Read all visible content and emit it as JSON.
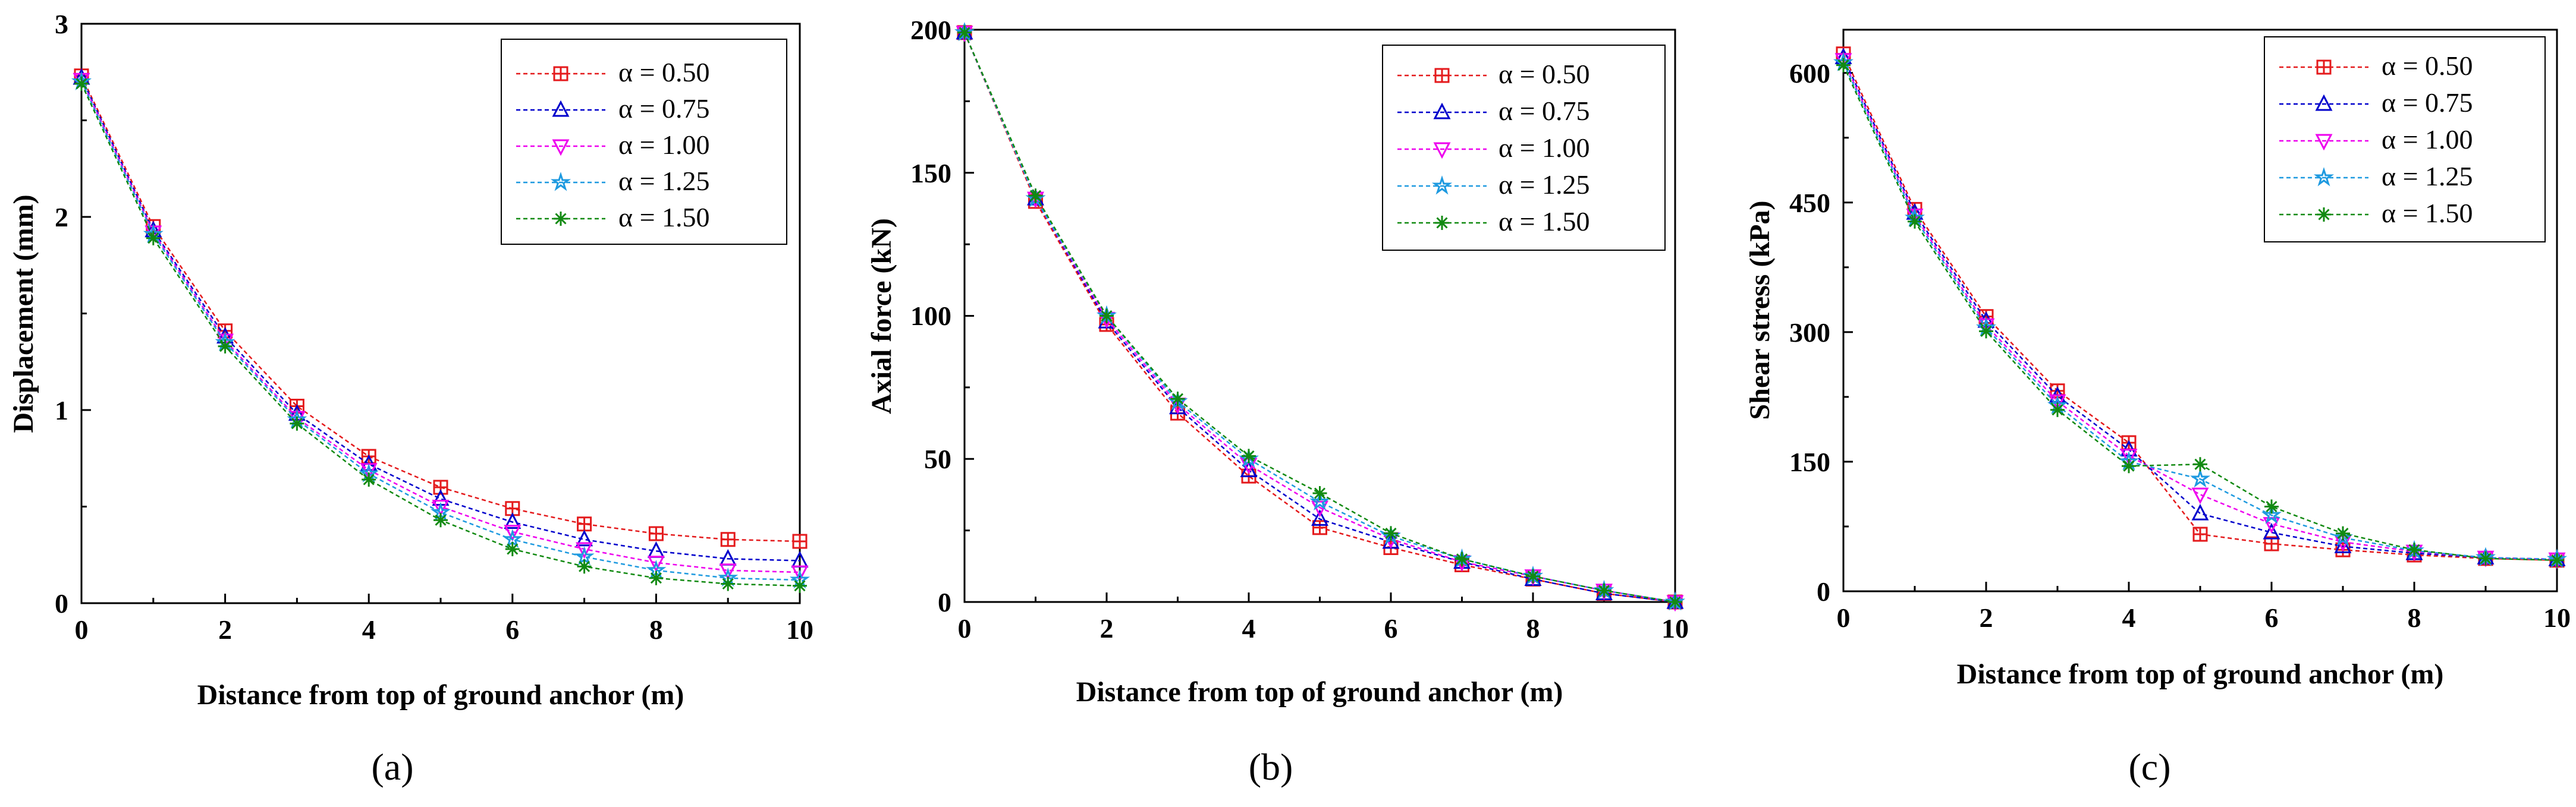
{
  "figure": {
    "series_styles": [
      {
        "color": "#e41a1c",
        "marker": "square-plus"
      },
      {
        "color": "#0000cc",
        "marker": "triangle-up"
      },
      {
        "color": "#ee00ee",
        "marker": "triangle-down"
      },
      {
        "color": "#1e9ae0",
        "marker": "star"
      },
      {
        "color": "#128a12",
        "marker": "asterisk"
      }
    ]
  },
  "chart_data": [
    {
      "type": "line",
      "panel_label": "(a)",
      "title": "",
      "xlabel": "Distance from top of ground anchor (m)",
      "ylabel": "Displacement (mm)",
      "xlim": [
        0,
        10
      ],
      "ylim": [
        0,
        3
      ],
      "xticks": [
        "0",
        "2",
        "4",
        "6",
        "8",
        "10"
      ],
      "yticks": [
        "0",
        "1",
        "2",
        "3"
      ],
      "x": [
        0,
        1,
        2,
        3,
        4,
        5,
        6,
        7,
        8,
        9,
        10
      ],
      "legend_position": "top-right",
      "series": [
        {
          "name": "α = 0.50",
          "values": [
            2.73,
            1.95,
            1.41,
            1.02,
            0.76,
            0.6,
            0.49,
            0.41,
            0.36,
            0.33,
            0.32
          ]
        },
        {
          "name": "α = 0.75",
          "values": [
            2.72,
            1.93,
            1.38,
            0.98,
            0.72,
            0.54,
            0.42,
            0.33,
            0.27,
            0.23,
            0.22
          ]
        },
        {
          "name": "α = 1.00",
          "values": [
            2.71,
            1.92,
            1.36,
            0.96,
            0.69,
            0.5,
            0.37,
            0.28,
            0.21,
            0.17,
            0.16
          ]
        },
        {
          "name": "α = 1.25",
          "values": [
            2.7,
            1.91,
            1.35,
            0.95,
            0.67,
            0.47,
            0.33,
            0.24,
            0.17,
            0.13,
            0.12
          ]
        },
        {
          "name": "α = 1.50",
          "values": [
            2.69,
            1.89,
            1.33,
            0.93,
            0.64,
            0.43,
            0.28,
            0.19,
            0.13,
            0.1,
            0.09
          ]
        }
      ]
    },
    {
      "type": "line",
      "panel_label": "(b)",
      "title": "",
      "xlabel": "Distance from top of ground anchor (m)",
      "ylabel": "Axial force (kN)",
      "xlim": [
        0,
        10
      ],
      "ylim": [
        0,
        200
      ],
      "xticks": [
        "0",
        "2",
        "4",
        "6",
        "8",
        "10"
      ],
      "yticks": [
        "0",
        "50",
        "100",
        "150",
        "200"
      ],
      "x": [
        0,
        1,
        2,
        3,
        4,
        5,
        6,
        7,
        8,
        9,
        10
      ],
      "legend_position": "top-right",
      "series": [
        {
          "name": "α = 0.50",
          "values": [
            199,
            140,
            97,
            66,
            44,
            26,
            19,
            13,
            8,
            3,
            0
          ]
        },
        {
          "name": "α = 0.75",
          "values": [
            199,
            141,
            98,
            68,
            46,
            29,
            21,
            14,
            8,
            3,
            0
          ]
        },
        {
          "name": "α = 1.00",
          "values": [
            199,
            141,
            99,
            69,
            48,
            33,
            22,
            14,
            9,
            4,
            0
          ]
        },
        {
          "name": "α = 1.25",
          "values": [
            199,
            141,
            100,
            70,
            50,
            35,
            23,
            15,
            9,
            4,
            0
          ]
        },
        {
          "name": "α = 1.50",
          "values": [
            199,
            142,
            100,
            71,
            51,
            38,
            24,
            15,
            9,
            4,
            0
          ]
        }
      ]
    },
    {
      "type": "line",
      "panel_label": "(c)",
      "title": "",
      "xlabel": "Distance from top of ground anchor (m)",
      "ylabel": "Shear stress (kPa)",
      "xlim": [
        0,
        10
      ],
      "ylim": [
        0,
        650
      ],
      "xticks": [
        "0",
        "2",
        "4",
        "6",
        "8",
        "10"
      ],
      "yticks": [
        "0",
        "150",
        "300",
        "450",
        "600"
      ],
      "ytick_values": [
        0,
        150,
        300,
        450,
        600
      ],
      "x": [
        0,
        1,
        2,
        3,
        4,
        5,
        6,
        7,
        8,
        9,
        10
      ],
      "legend_position": "top-right",
      "series": [
        {
          "name": "α = 0.50",
          "values": [
            622,
            442,
            318,
            232,
            172,
            66,
            55,
            48,
            42,
            38,
            36
          ]
        },
        {
          "name": "α = 0.75",
          "values": [
            618,
            438,
            313,
            226,
            164,
            90,
            68,
            52,
            44,
            39,
            37
          ]
        },
        {
          "name": "α = 1.00",
          "values": [
            615,
            435,
            308,
            220,
            157,
            112,
            78,
            57,
            46,
            39,
            37
          ]
        },
        {
          "name": "α = 1.25",
          "values": [
            612,
            432,
            305,
            215,
            150,
            130,
            88,
            62,
            47,
            39,
            37
          ]
        },
        {
          "name": "α = 1.50",
          "values": [
            609,
            428,
            301,
            210,
            145,
            147,
            98,
            67,
            48,
            38,
            36
          ]
        }
      ]
    }
  ]
}
